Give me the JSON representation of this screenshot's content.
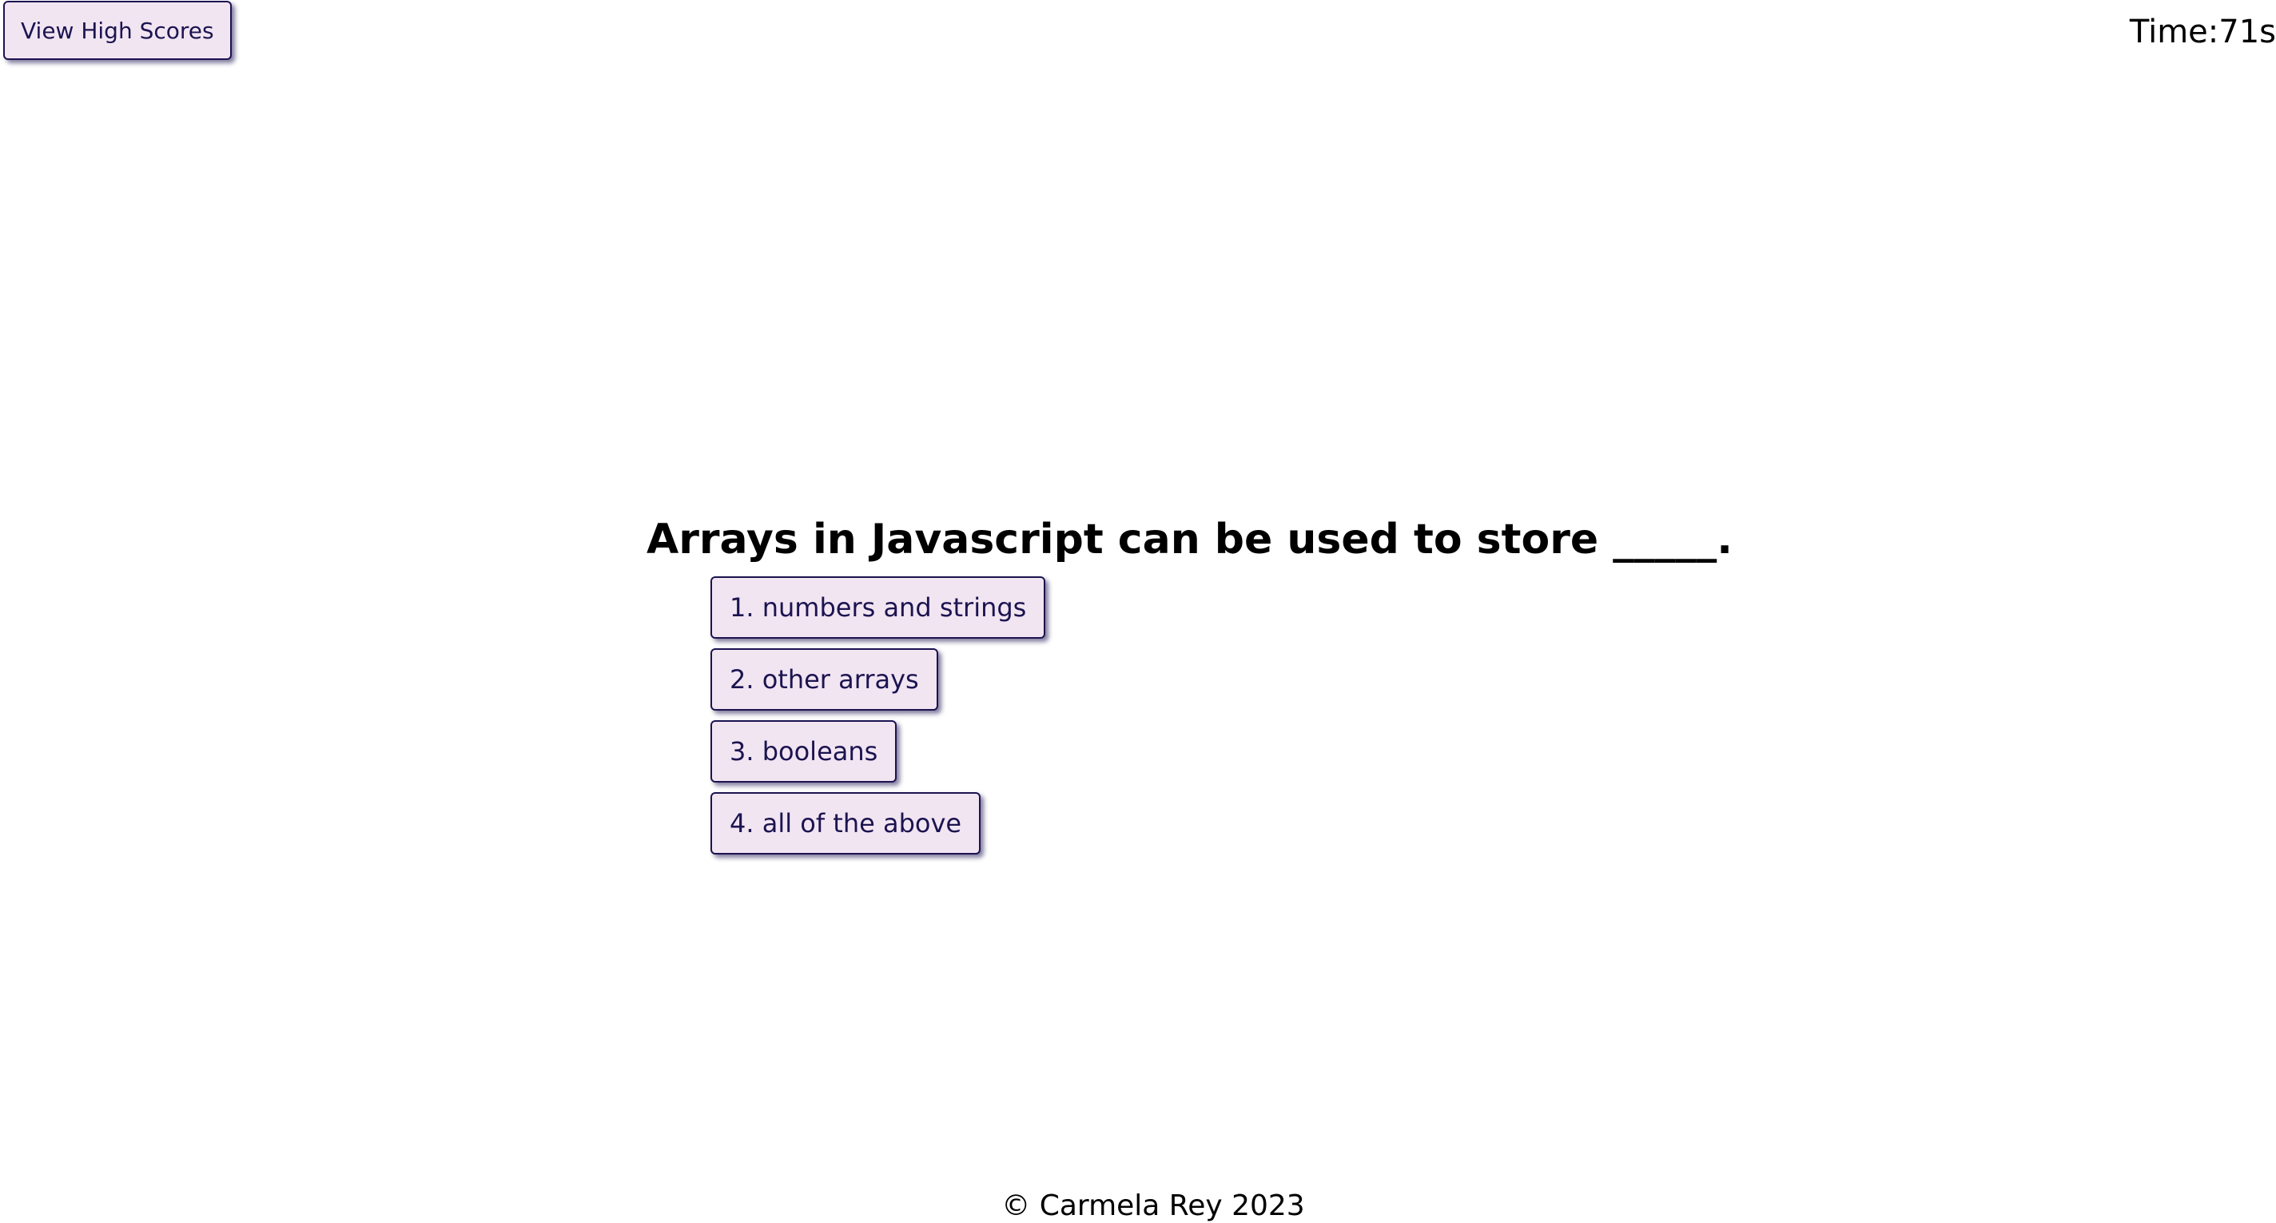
{
  "header": {
    "high_scores_label": "View High Scores",
    "timer_label": "Time:",
    "timer_value": "71s"
  },
  "quiz": {
    "question": "Arrays in Javascript can be used to store _____.",
    "answers": [
      "1. numbers and strings",
      "2. other arrays",
      "3. booleans",
      "4. all of the above"
    ]
  },
  "footer": {
    "copyright": "© Carmela Rey 2023"
  },
  "colors": {
    "button_bg": "#f2e5f2",
    "button_text": "#1b1450",
    "button_border": "#1b1450"
  }
}
